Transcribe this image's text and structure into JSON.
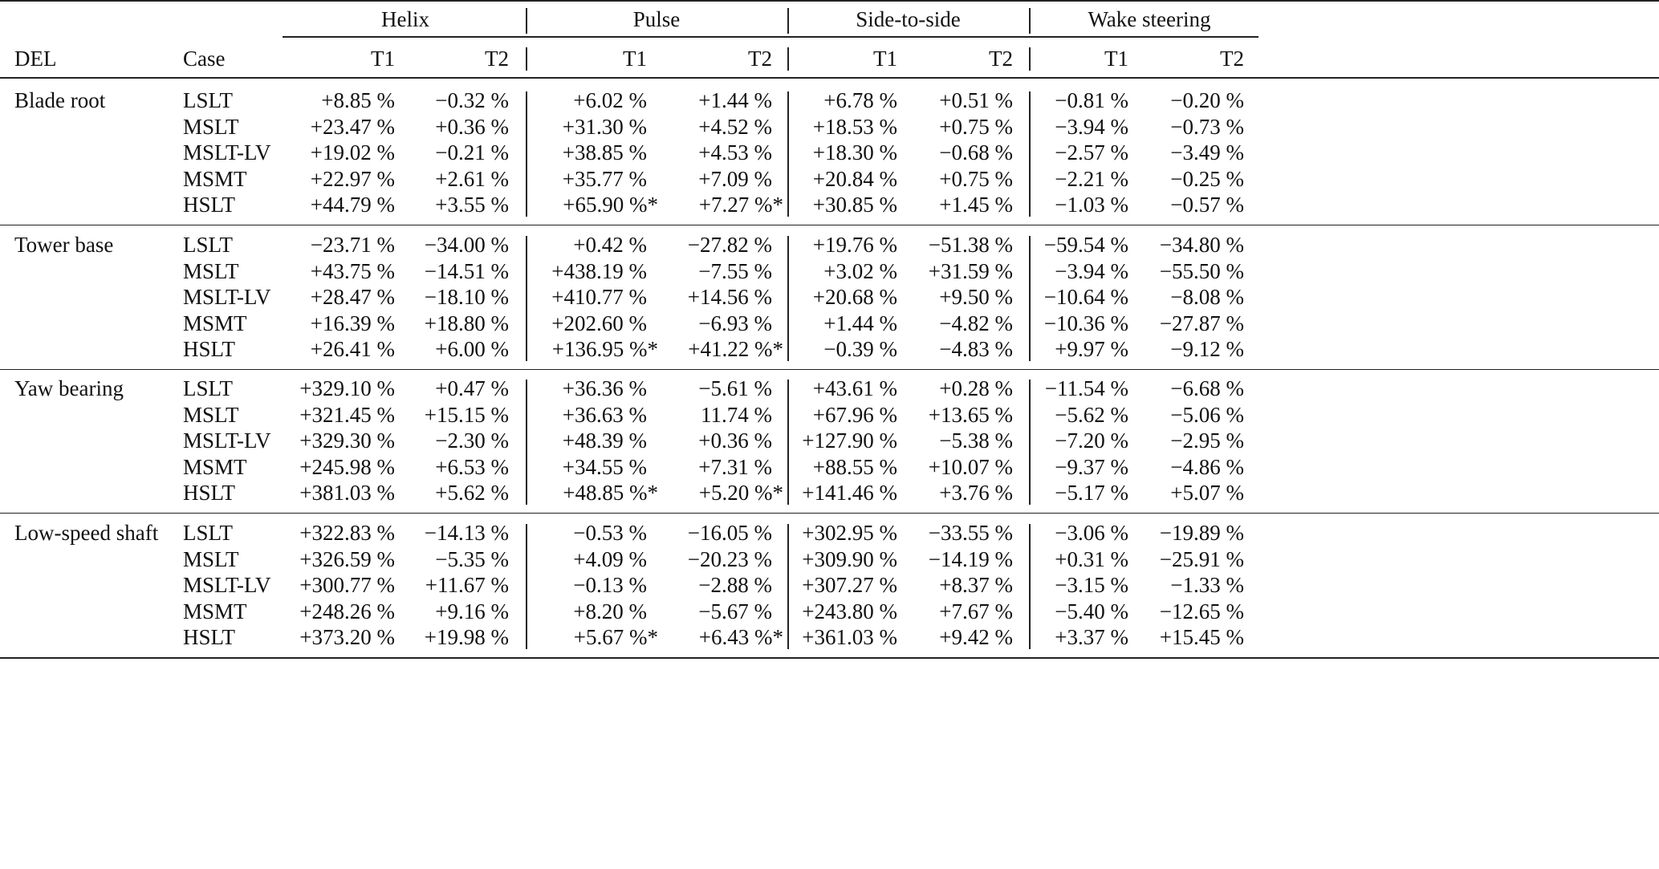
{
  "header": {
    "groups": [
      "Helix",
      "Pulse",
      "Side-to-side",
      "Wake steering"
    ],
    "del_label": "DEL",
    "case_label": "Case",
    "sub": [
      "T1",
      "T2",
      "T1",
      "T2",
      "T1",
      "T2",
      "T1",
      "T2"
    ]
  },
  "blocks": [
    {
      "del": "Blade root",
      "rows": [
        {
          "case": "LSLT",
          "values": [
            "+8.85 %",
            "−0.32 %",
            "+6.02 %",
            "+1.44 %",
            "+6.78 %",
            "+0.51 %",
            "−0.81 %",
            "−0.20 %"
          ]
        },
        {
          "case": "MSLT",
          "values": [
            "+23.47 %",
            "+0.36 %",
            "+31.30 %",
            "+4.52 %",
            "+18.53 %",
            "+0.75 %",
            "−3.94 %",
            "−0.73 %"
          ]
        },
        {
          "case": "MSLT-LV",
          "values": [
            "+19.02 %",
            "−0.21 %",
            "+38.85 %",
            "+4.53 %",
            "+18.30 %",
            "−0.68 %",
            "−2.57 %",
            "−3.49 %"
          ]
        },
        {
          "case": "MSMT",
          "values": [
            "+22.97 %",
            "+2.61 %",
            "+35.77 %",
            "+7.09 %",
            "+20.84 %",
            "+0.75 %",
            "−2.21 %",
            "−0.25 %"
          ]
        },
        {
          "case": "HSLT",
          "values": [
            "+44.79 %",
            "+3.55 %",
            "+65.90 %*",
            "+7.27 %*",
            "+30.85 %",
            "+1.45 %",
            "−1.03 %",
            "−0.57 %"
          ]
        }
      ]
    },
    {
      "del": "Tower base",
      "rows": [
        {
          "case": "LSLT",
          "values": [
            "−23.71 %",
            "−34.00 %",
            "+0.42 %",
            "−27.82 %",
            "+19.76 %",
            "−51.38 %",
            "−59.54 %",
            "−34.80 %"
          ]
        },
        {
          "case": "MSLT",
          "values": [
            "+43.75 %",
            "−14.51 %",
            "+438.19 %",
            "−7.55 %",
            "+3.02 %",
            "+31.59 %",
            "−3.94 %",
            "−55.50 %"
          ]
        },
        {
          "case": "MSLT-LV",
          "values": [
            "+28.47 %",
            "−18.10 %",
            "+410.77 %",
            "+14.56 %",
            "+20.68 %",
            "+9.50 %",
            "−10.64 %",
            "−8.08 %"
          ]
        },
        {
          "case": "MSMT",
          "values": [
            "+16.39 %",
            "+18.80 %",
            "+202.60 %",
            "−6.93 %",
            "+1.44 %",
            "−4.82 %",
            "−10.36 %",
            "−27.87 %"
          ]
        },
        {
          "case": "HSLT",
          "values": [
            "+26.41 %",
            "+6.00 %",
            "+136.95 %*",
            "+41.22 %*",
            "−0.39 %",
            "−4.83 %",
            "+9.97 %",
            "−9.12 %"
          ]
        }
      ]
    },
    {
      "del": "Yaw bearing",
      "rows": [
        {
          "case": "LSLT",
          "values": [
            "+329.10 %",
            "+0.47 %",
            "+36.36 %",
            "−5.61 %",
            "+43.61 %",
            "+0.28 %",
            "−11.54 %",
            "−6.68 %"
          ]
        },
        {
          "case": "MSLT",
          "values": [
            "+321.45 %",
            "+15.15 %",
            "+36.63 %",
            "11.74 %",
            "+67.96 %",
            "+13.65 %",
            "−5.62 %",
            "−5.06 %"
          ]
        },
        {
          "case": "MSLT-LV",
          "values": [
            "+329.30 %",
            "−2.30 %",
            "+48.39 %",
            "+0.36 %",
            "+127.90 %",
            "−5.38 %",
            "−7.20 %",
            "−2.95 %"
          ]
        },
        {
          "case": "MSMT",
          "values": [
            "+245.98 %",
            "+6.53 %",
            "+34.55 %",
            "+7.31 %",
            "+88.55 %",
            "+10.07 %",
            "−9.37 %",
            "−4.86 %"
          ]
        },
        {
          "case": "HSLT",
          "values": [
            "+381.03 %",
            "+5.62 %",
            "+48.85 %*",
            "+5.20 %*",
            "+141.46 %",
            "+3.76 %",
            "−5.17 %",
            "+5.07 %"
          ]
        }
      ]
    },
    {
      "del": "Low-speed shaft",
      "rows": [
        {
          "case": "LSLT",
          "values": [
            "+322.83 %",
            "−14.13 %",
            "−0.53 %",
            "−16.05 %",
            "+302.95 %",
            "−33.55 %",
            "−3.06 %",
            "−19.89 %"
          ]
        },
        {
          "case": "MSLT",
          "values": [
            "+326.59 %",
            "−5.35 %",
            "+4.09 %",
            "−20.23 %",
            "+309.90 %",
            "−14.19 %",
            "+0.31 %",
            "−25.91 %"
          ]
        },
        {
          "case": "MSLT-LV",
          "values": [
            "+300.77 %",
            "+11.67 %",
            "−0.13 %",
            "−2.88 %",
            "+307.27 %",
            "+8.37 %",
            "−3.15 %",
            "−1.33 %"
          ]
        },
        {
          "case": "MSMT",
          "values": [
            "+248.26 %",
            "+9.16 %",
            "+8.20 %",
            "−5.67 %",
            "+243.80 %",
            "+7.67 %",
            "−5.40 %",
            "−12.65 %"
          ]
        },
        {
          "case": "HSLT",
          "values": [
            "+373.20 %",
            "+19.98 %",
            "+5.67 %*",
            "+6.43 %*",
            "+361.03 %",
            "+9.42 %",
            "+3.37 %",
            "+15.45 %"
          ]
        }
      ]
    }
  ]
}
